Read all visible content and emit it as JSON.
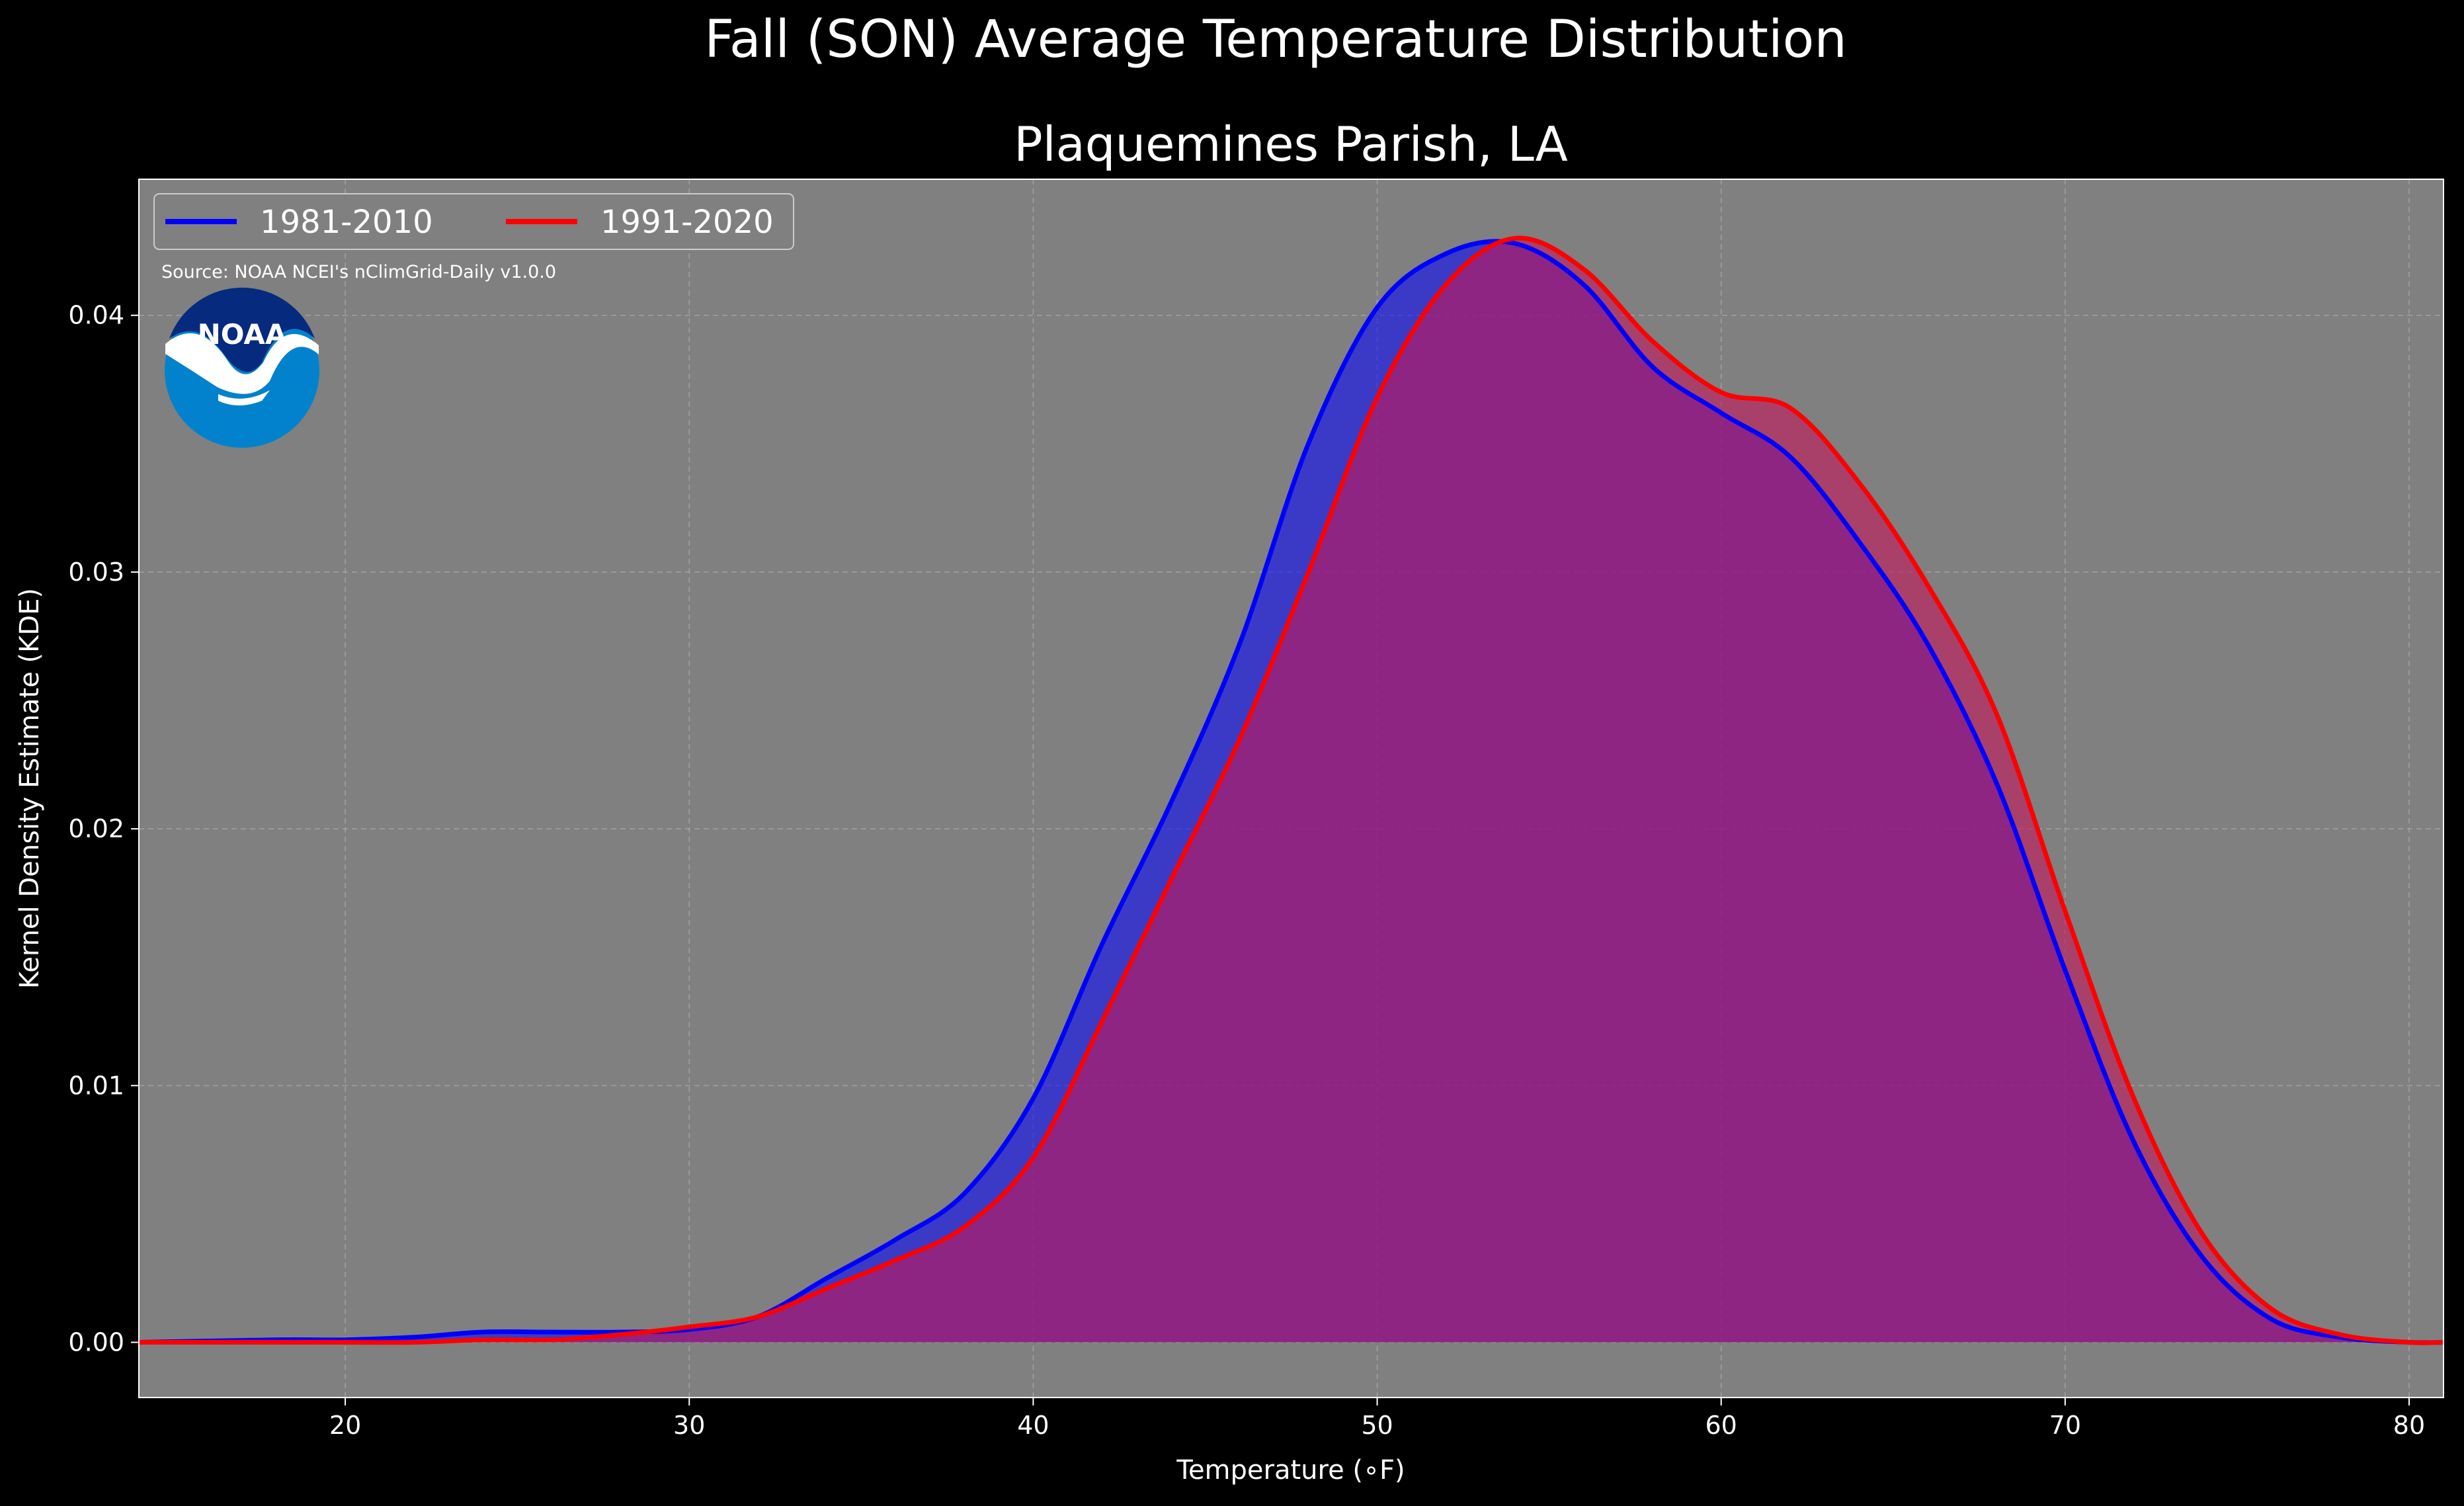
{
  "chart_data": {
    "type": "area",
    "title": "Fall (SON) Average Temperature Distribution",
    "subtitle": "Plaquemines Parish, LA",
    "xlabel": "Temperature (∘F)",
    "ylabel": "Kernel Density Estimate (KDE)",
    "xlim": [
      14,
      81
    ],
    "ylim": [
      -0.00215,
      0.0453
    ],
    "xticks": [
      20,
      30,
      40,
      50,
      60,
      70,
      80
    ],
    "yticks": [
      0.0,
      0.01,
      0.02,
      0.03,
      0.04
    ],
    "xtick_labels": [
      "20",
      "30",
      "40",
      "50",
      "60",
      "70",
      "80"
    ],
    "ytick_labels": [
      "0.00",
      "0.01",
      "0.02",
      "0.03",
      "0.04"
    ],
    "grid": true,
    "legend": "top-left",
    "annotation": "Source: NOAA NCEI's nClimGrid-Daily v1.0.0",
    "logo_text": "NOAA",
    "series": [
      {
        "name": "1981-2010",
        "color": "#0000ff",
        "fill": "#0000ff",
        "x": [
          14,
          18,
          20,
          22,
          24,
          26,
          28,
          30,
          32,
          34,
          36,
          38,
          40,
          42,
          44,
          46,
          48,
          50,
          52,
          54,
          56,
          58,
          60,
          62,
          64,
          66,
          68,
          70,
          72,
          74,
          76,
          78,
          80,
          81
        ],
        "values": [
          0.0,
          0.0001,
          0.0001,
          0.0002,
          0.0004,
          0.0004,
          0.0004,
          0.0005,
          0.001,
          0.0025,
          0.004,
          0.0058,
          0.0095,
          0.0155,
          0.021,
          0.0272,
          0.035,
          0.0403,
          0.0424,
          0.0428,
          0.0412,
          0.038,
          0.0362,
          0.0345,
          0.0312,
          0.0272,
          0.0218,
          0.0145,
          0.0078,
          0.0033,
          0.0009,
          0.0002,
          0.0,
          0.0
        ]
      },
      {
        "name": "1991-2020",
        "color": "#ff0000",
        "fill": "#c2185b",
        "x": [
          14,
          18,
          20,
          22,
          24,
          26,
          28,
          30,
          32,
          34,
          36,
          38,
          40,
          42,
          44,
          46,
          48,
          50,
          52,
          54,
          56,
          58,
          60,
          62,
          64,
          66,
          68,
          70,
          72,
          74,
          76,
          78,
          80,
          81
        ],
        "values": [
          0.0,
          0.0,
          0.0,
          0.0,
          0.0001,
          0.0001,
          0.0003,
          0.0006,
          0.001,
          0.0021,
          0.0032,
          0.0045,
          0.0072,
          0.0125,
          0.018,
          0.0235,
          0.03,
          0.0368,
          0.0412,
          0.043,
          0.0418,
          0.039,
          0.037,
          0.0364,
          0.0335,
          0.0295,
          0.0245,
          0.0168,
          0.0095,
          0.0042,
          0.0013,
          0.0003,
          0.0,
          0.0
        ]
      }
    ]
  }
}
